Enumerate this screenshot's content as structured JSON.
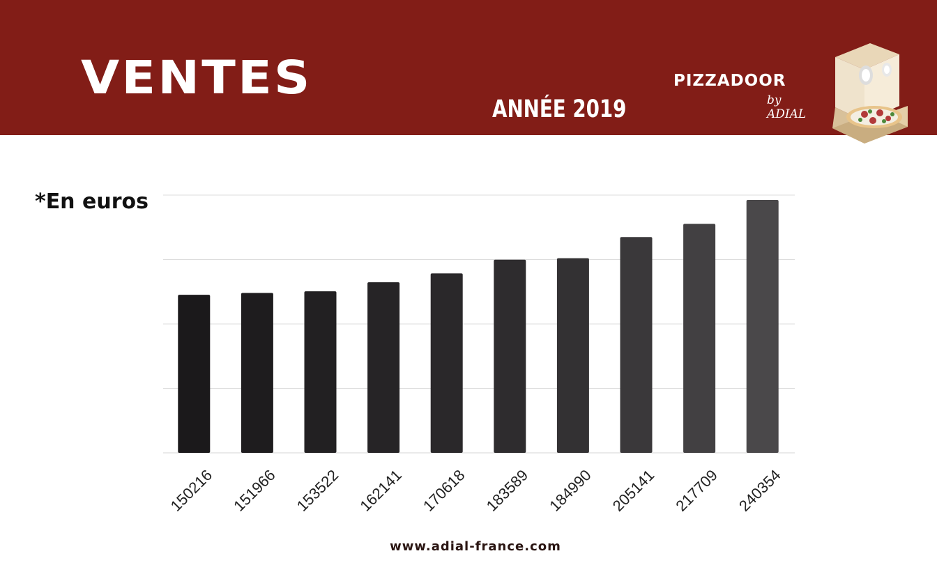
{
  "header": {
    "title": "VENTES",
    "subtitle": "ANNÉE 2019",
    "brand_main": "PIZZADOOR",
    "brand_sub": "by ADIAL",
    "background_color": "#821d17",
    "logo_icon": "pizza-box-icon"
  },
  "unit_note": "*En euros",
  "footer": {
    "url": "www.adial-france.com"
  },
  "chart_data": {
    "type": "bar",
    "title": "",
    "xlabel": "",
    "ylabel": "",
    "categories": [
      "150216",
      "151966",
      "153522",
      "162141",
      "170618",
      "183589",
      "184990",
      "205141",
      "217709",
      "240354"
    ],
    "values": [
      150216,
      151966,
      153522,
      162141,
      170618,
      183589,
      184990,
      205141,
      217709,
      240354
    ],
    "ylim": [
      0,
      245000
    ],
    "grid": true,
    "legend": "none",
    "bar_colors": [
      "#1b191b",
      "#1e1c1e",
      "#222022",
      "#262426",
      "#2a282a",
      "#2e2c2e",
      "#333133",
      "#3a383a",
      "#424042",
      "#4a484a"
    ],
    "grid_color": "#dddddd"
  }
}
